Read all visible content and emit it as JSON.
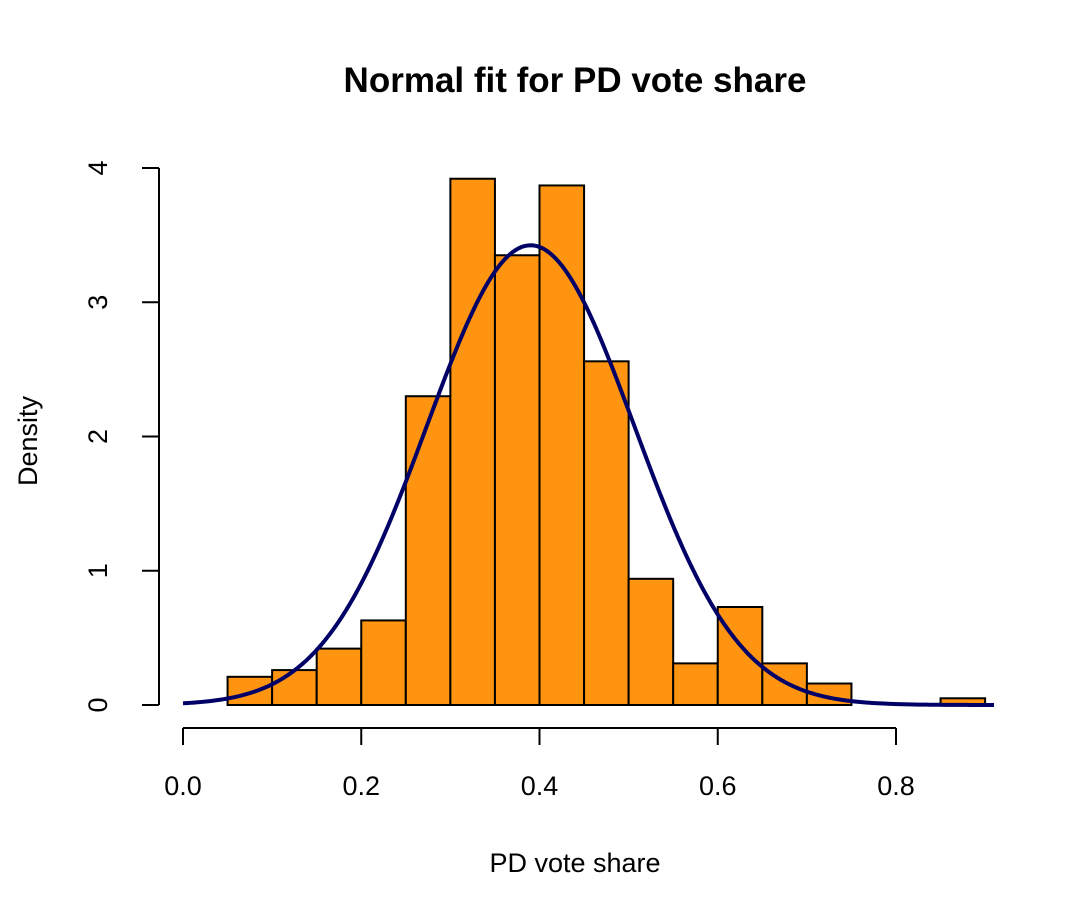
{
  "chart_data": {
    "type": "bar",
    "title": "Normal fit for PD vote share",
    "xlabel": "PD vote share",
    "ylabel": "Density",
    "xlim": [
      0,
      0.9
    ],
    "ylim": [
      0,
      4
    ],
    "x_ticks": [
      0.0,
      0.2,
      0.4,
      0.6,
      0.8
    ],
    "x_tick_labels": [
      "0.0",
      "0.2",
      "0.4",
      "0.6",
      "0.8"
    ],
    "y_ticks": [
      0,
      1,
      2,
      3,
      4
    ],
    "y_tick_labels": [
      "0",
      "1",
      "2",
      "3",
      "4"
    ],
    "bin_width": 0.05,
    "bins": [
      {
        "x0": 0.05,
        "x1": 0.1,
        "density": 0.21
      },
      {
        "x0": 0.1,
        "x1": 0.15,
        "density": 0.26
      },
      {
        "x0": 0.15,
        "x1": 0.2,
        "density": 0.42
      },
      {
        "x0": 0.2,
        "x1": 0.25,
        "density": 0.63
      },
      {
        "x0": 0.25,
        "x1": 0.3,
        "density": 2.3
      },
      {
        "x0": 0.3,
        "x1": 0.35,
        "density": 3.92
      },
      {
        "x0": 0.35,
        "x1": 0.4,
        "density": 3.35
      },
      {
        "x0": 0.4,
        "x1": 0.45,
        "density": 3.87
      },
      {
        "x0": 0.45,
        "x1": 0.5,
        "density": 2.56
      },
      {
        "x0": 0.5,
        "x1": 0.55,
        "density": 0.94
      },
      {
        "x0": 0.55,
        "x1": 0.6,
        "density": 0.31
      },
      {
        "x0": 0.6,
        "x1": 0.65,
        "density": 0.73
      },
      {
        "x0": 0.65,
        "x1": 0.7,
        "density": 0.31
      },
      {
        "x0": 0.7,
        "x1": 0.75,
        "density": 0.16
      },
      {
        "x0": 0.85,
        "x1": 0.9,
        "density": 0.05
      }
    ],
    "normal_fit": {
      "mean": 0.39,
      "sd": 0.1165,
      "x_range": [
        0.0,
        0.91
      ]
    },
    "colors": {
      "bar_fill": "#FF9410",
      "bar_stroke": "#000000",
      "curve": "#000066"
    }
  }
}
